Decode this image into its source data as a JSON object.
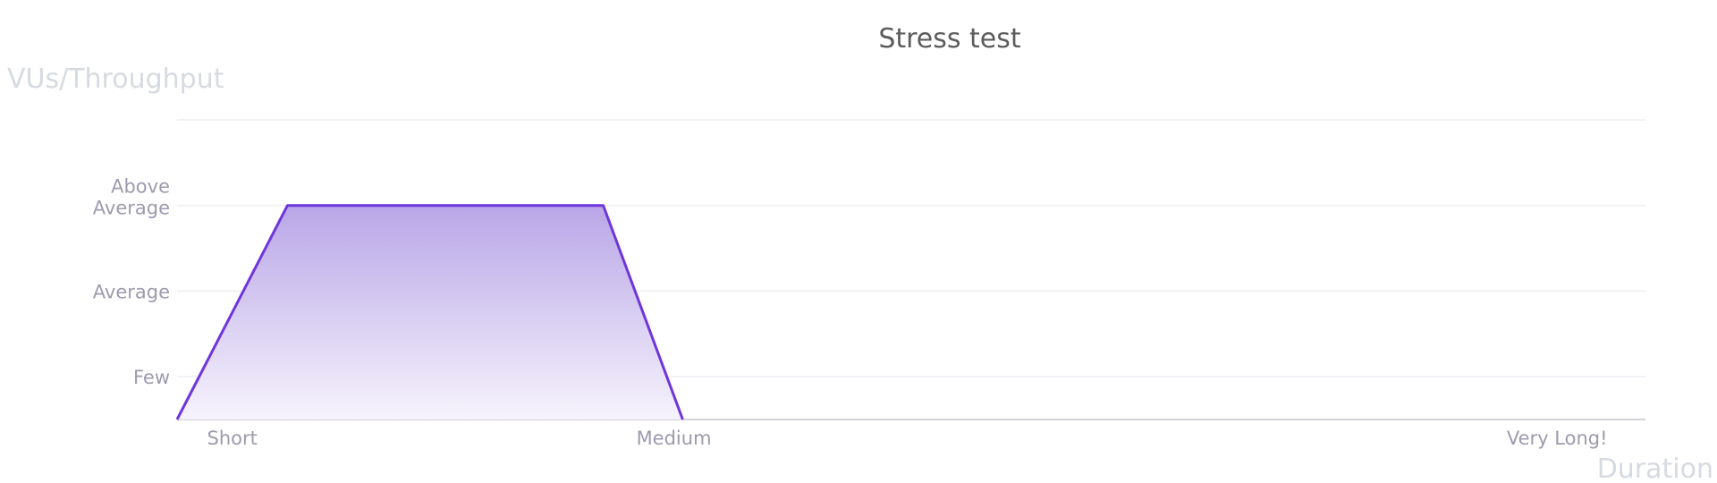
{
  "chart_data": {
    "type": "area",
    "title": "Stress test",
    "xlabel": "Duration",
    "ylabel": "VUs/Throughput",
    "x_ticks": [
      {
        "value": 1,
        "label": "Short"
      },
      {
        "value": 2,
        "label": "Medium"
      },
      {
        "value": 4,
        "label": "Very Long!"
      }
    ],
    "y_ticks": [
      {
        "value": 1,
        "label": "Few"
      },
      {
        "value": 2,
        "label": "Average"
      },
      {
        "value": 3,
        "label": "Above Average"
      }
    ],
    "xlim": [
      0.875,
      4.2
    ],
    "ylim": [
      0.5,
      4
    ],
    "grid": true,
    "series": [
      {
        "x": [
          0.875,
          1.125,
          1.84,
          2.02
        ],
        "y": [
          0.5,
          3,
          3,
          0.5
        ]
      }
    ],
    "colors": {
      "line": "#6f35dc",
      "fill_top": "#b9a6e7",
      "fill_bottom": "#f6f3fc",
      "grid": "#f1f2f5",
      "baseline": "#d3d3d8"
    }
  }
}
